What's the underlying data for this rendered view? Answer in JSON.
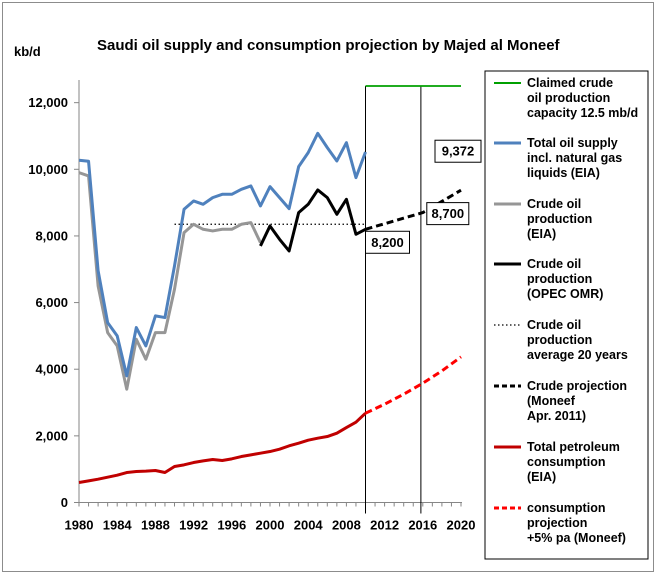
{
  "chart_data": {
    "type": "line",
    "title": "Saudi oil supply and consumption projection  by Majed al Moneef",
    "ylabel": "kb/d",
    "xlim": [
      1980,
      2020
    ],
    "ylim": [
      0,
      12500
    ],
    "yticks": [
      0,
      2000,
      4000,
      6000,
      8000,
      10000,
      12000
    ],
    "ytick_labels": [
      "0",
      "2,000",
      "4,000",
      "6,000",
      "8,000",
      "10,000",
      "12,000"
    ],
    "xticks": [
      1980,
      1984,
      1988,
      1992,
      1996,
      2000,
      2004,
      2008,
      2012,
      2016,
      2020
    ],
    "xtick_labels": [
      "1980",
      "1984",
      "1988",
      "1992",
      "1996",
      "2000",
      "2004",
      "2008",
      "2012",
      "2016",
      "2020"
    ],
    "legend_position": "right",
    "series": [
      {
        "name": "Claimed crude oil production capacity 12.5 mb/d",
        "legend_lines": [
          "Claimed crude",
          "oil production",
          "capacity 12.5 mb/d"
        ],
        "color": "#00a000",
        "dash": "solid",
        "x": [
          2010,
          2020
        ],
        "y": [
          12500,
          12500
        ]
      },
      {
        "name": "Total oil supply incl. natural gas liquids (EIA)",
        "legend_lines": [
          "Total oil supply",
          "incl. natural gas",
          "liquids (EIA)"
        ],
        "color": "#4f81bd",
        "dash": "solid",
        "x": [
          1980,
          1981,
          1982,
          1983,
          1984,
          1985,
          1986,
          1987,
          1988,
          1989,
          1990,
          1991,
          1992,
          1993,
          1994,
          1995,
          1996,
          1997,
          1998,
          1999,
          2000,
          2001,
          2002,
          2003,
          2004,
          2005,
          2006,
          2007,
          2008,
          2009,
          2010
        ],
        "y": [
          10270,
          10240,
          6960,
          5400,
          5000,
          3800,
          5250,
          4700,
          5600,
          5550,
          7100,
          8800,
          9050,
          8950,
          9150,
          9250,
          9250,
          9400,
          9500,
          8900,
          9480,
          9150,
          8820,
          10080,
          10500,
          11080,
          10650,
          10250,
          10800,
          9750,
          10520
        ]
      },
      {
        "name": "Crude oil production (EIA)",
        "legend_lines": [
          "Crude oil",
          "production",
          "(EIA)"
        ],
        "color": "#969696",
        "dash": "solid",
        "x": [
          1980,
          1981,
          1982,
          1983,
          1984,
          1985,
          1986,
          1987,
          1988,
          1989,
          1990,
          1991,
          1992,
          1993,
          1994,
          1995,
          1996,
          1997,
          1998,
          1999
        ],
        "y": [
          9900,
          9800,
          6500,
          5100,
          4700,
          3400,
          4900,
          4300,
          5100,
          5100,
          6400,
          8100,
          8350,
          8200,
          8150,
          8200,
          8200,
          8350,
          8400,
          7800
        ]
      },
      {
        "name": "Crude oil production (OPEC OMR)",
        "legend_lines": [
          "Crude oil",
          "production",
          "(OPEC  OMR)"
        ],
        "color": "#000000",
        "dash": "solid",
        "x": [
          1999,
          2000,
          2001,
          2002,
          2003,
          2004,
          2005,
          2006,
          2007,
          2008,
          2009,
          2010
        ],
        "y": [
          7700,
          8300,
          7900,
          7550,
          8700,
          8950,
          9380,
          9150,
          8650,
          9100,
          8050,
          8200
        ]
      },
      {
        "name": "Crude oil production average 20 years",
        "legend_lines": [
          "Crude oil",
          "production",
          "average 20 years"
        ],
        "color": "#000000",
        "dash": "dotted",
        "x": [
          1990,
          2010
        ],
        "y": [
          8350,
          8350
        ]
      },
      {
        "name": "Crude projection (Moneef Apr. 2011)",
        "legend_lines": [
          "Crude projection",
          "(Moneef",
          "Apr. 2011)"
        ],
        "color": "#000000",
        "dash": "dashed",
        "x": [
          2010,
          2016,
          2020
        ],
        "y": [
          8200,
          8700,
          9372
        ]
      },
      {
        "name": "Total petroleum consumption (EIA)",
        "legend_lines": [
          "Total petroleum",
          "consumption",
          "(EIA)"
        ],
        "color": "#c00000",
        "dash": "solid",
        "x": [
          1980,
          1981,
          1982,
          1983,
          1984,
          1985,
          1986,
          1987,
          1988,
          1989,
          1990,
          1991,
          1992,
          1993,
          1994,
          1995,
          1996,
          1997,
          1998,
          1999,
          2000,
          2001,
          2002,
          2003,
          2004,
          2005,
          2006,
          2007,
          2008,
          2009,
          2010
        ],
        "y": [
          600,
          650,
          700,
          760,
          820,
          900,
          930,
          940,
          960,
          900,
          1080,
          1130,
          1200,
          1250,
          1290,
          1260,
          1310,
          1380,
          1430,
          1480,
          1530,
          1600,
          1700,
          1780,
          1870,
          1930,
          1980,
          2080,
          2250,
          2410,
          2680
        ]
      },
      {
        "name": "consumption projection +5% pa (Moneef)",
        "legend_lines": [
          "consumption",
          "projection",
          "+5% pa (Moneef)"
        ],
        "color": "#ff0000",
        "dash": "dashed",
        "x": [
          2010,
          2012,
          2014,
          2016,
          2018,
          2020
        ],
        "y": [
          2680,
          2950,
          3250,
          3580,
          3950,
          4370
        ]
      }
    ],
    "annotations": [
      {
        "text": "9,372",
        "x": 2020,
        "y": 9372
      },
      {
        "text": "8,700",
        "x": 2016,
        "y": 8700
      },
      {
        "text": "8,200",
        "x": 2010,
        "y": 8200
      }
    ]
  }
}
